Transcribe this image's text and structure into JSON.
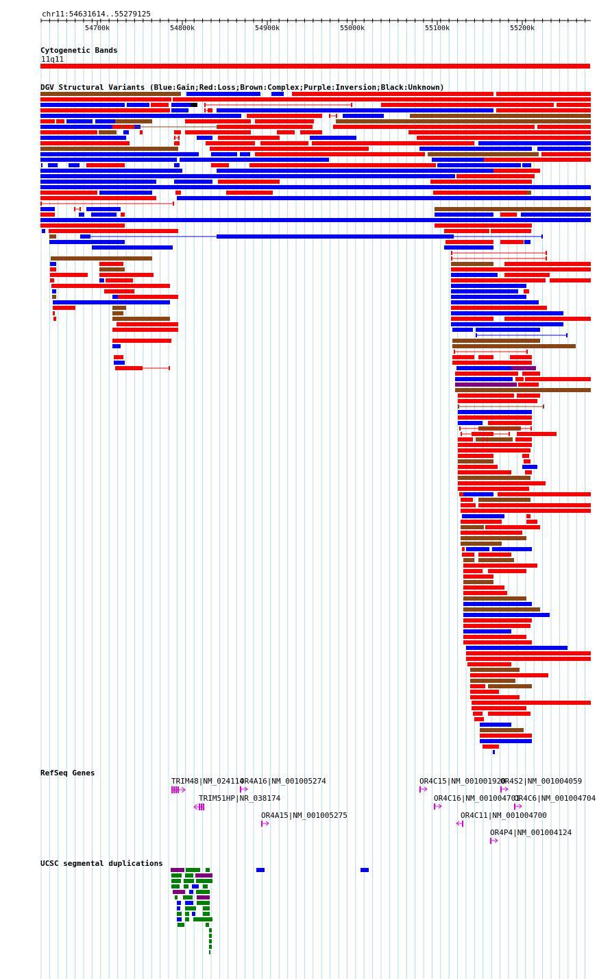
{
  "region": {
    "label": "chr11:54631614..55279125"
  },
  "ruler": {
    "ticks": [
      "54700k",
      "54800k",
      "54900k",
      "55000k",
      "55100k",
      "55200k"
    ]
  },
  "tracks": {
    "cytoband": {
      "title": "Cytogenetic Bands",
      "band": "11q11",
      "color": "#ff0000"
    },
    "dgv": {
      "title": "DGV Structural Variants (Blue:Gain;Red:Loss;Brown:Complex;Purple:Inversion;Black:Unknown)",
      "legend": {
        "Gain": "#0000ff",
        "Loss": "#ff0000",
        "Complex": "#8b4513",
        "Inversion": "#800080",
        "Unknown": "#000000"
      }
    },
    "refseq": {
      "title": "RefSeq Genes",
      "genes": [
        {
          "label": "TRIM48|NM_024114",
          "strand": "+"
        },
        {
          "label": "OR4A16|NM_001005274",
          "strand": "+"
        },
        {
          "label": "TRIM51HP|NR_038174",
          "strand": "-"
        },
        {
          "label": "OR4A15|NM_001005275",
          "strand": "+"
        },
        {
          "label": "OR4C15|NM_001001920",
          "strand": "+"
        },
        {
          "label": "OR4S2|NM_001004059",
          "strand": "+"
        },
        {
          "label": "OR4C16|NM_001004701",
          "strand": "+"
        },
        {
          "label": "OR4C6|NM_001004704",
          "strand": "+"
        },
        {
          "label": "OR4C11|NM_001004700",
          "strand": "-"
        },
        {
          "label": "OR4P4|NM_001004124",
          "strand": "+"
        }
      ],
      "color": "#e000e0"
    },
    "segdup": {
      "title": "UCSC segmental duplications",
      "colors": [
        "#008000",
        "#800080",
        "#0000ff"
      ]
    }
  }
}
